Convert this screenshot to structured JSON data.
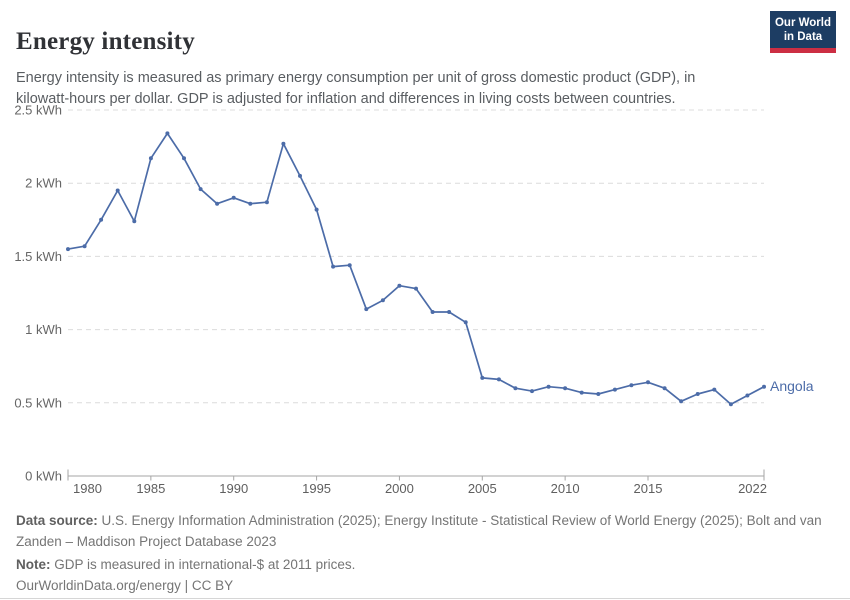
{
  "header": {
    "title": "Energy intensity",
    "subtitle": "Energy intensity is measured as primary energy consumption per unit of gross domestic product (GDP), in kilowatt-hours per dollar. GDP is adjusted for inflation and differences in living costs between countries.",
    "logo": {
      "line1": "Our World",
      "line2": "in Data"
    }
  },
  "chart_data": {
    "type": "line",
    "title": "Energy intensity",
    "unit": "kWh",
    "xlim": [
      1980,
      2022
    ],
    "ylim": [
      0,
      2.5
    ],
    "grid": "horizontal-dashed",
    "legend_position": "end-of-line-label",
    "x_ticks": [
      1980,
      1985,
      1990,
      1995,
      2000,
      2005,
      2010,
      2015,
      2022
    ],
    "y_ticks": [
      {
        "value": 0,
        "label": "0 kWh"
      },
      {
        "value": 0.5,
        "label": "0.5 kWh"
      },
      {
        "value": 1,
        "label": "1 kWh"
      },
      {
        "value": 1.5,
        "label": "1.5 kWh"
      },
      {
        "value": 2,
        "label": "2 kWh"
      },
      {
        "value": 2.5,
        "label": "2.5 kWh"
      }
    ],
    "series": [
      {
        "name": "Angola",
        "color": "#4c6ca8",
        "x": [
          1980,
          1981,
          1982,
          1983,
          1984,
          1985,
          1986,
          1987,
          1988,
          1989,
          1990,
          1991,
          1992,
          1993,
          1994,
          1995,
          1996,
          1997,
          1998,
          1999,
          2000,
          2001,
          2002,
          2003,
          2004,
          2005,
          2006,
          2007,
          2008,
          2009,
          2010,
          2011,
          2012,
          2013,
          2014,
          2015,
          2016,
          2017,
          2018,
          2019,
          2020,
          2021,
          2022
        ],
        "values": [
          1.55,
          1.57,
          1.75,
          1.95,
          1.74,
          2.17,
          2.34,
          2.17,
          1.96,
          1.86,
          1.9,
          1.86,
          1.87,
          2.27,
          2.05,
          1.82,
          1.43,
          1.44,
          1.14,
          1.2,
          1.3,
          1.28,
          1.12,
          1.12,
          1.05,
          0.67,
          0.66,
          0.6,
          0.58,
          0.61,
          0.6,
          0.57,
          0.56,
          0.59,
          0.62,
          0.64,
          0.6,
          0.51,
          0.56,
          0.59,
          0.49,
          0.55,
          0.61
        ]
      }
    ]
  },
  "footer": {
    "data_source_label": "Data source:",
    "data_source": "U.S. Energy Information Administration (2025); Energy Institute - Statistical Review of World Energy (2025); Bolt and van Zanden – Maddison Project Database 2023",
    "note_label": "Note:",
    "note": "GDP is measured in international-$ at 2011 prices.",
    "license": "OurWorldinData.org/energy | CC BY"
  },
  "colors": {
    "line": "#4c6ca8",
    "logo_navy": "#1d3d63",
    "logo_red": "#cc2e43",
    "grid": "#dcdcdc",
    "axis": "#a5a5a5",
    "tick_text": "#5f5f5f",
    "y_tick_text": "#666666"
  }
}
